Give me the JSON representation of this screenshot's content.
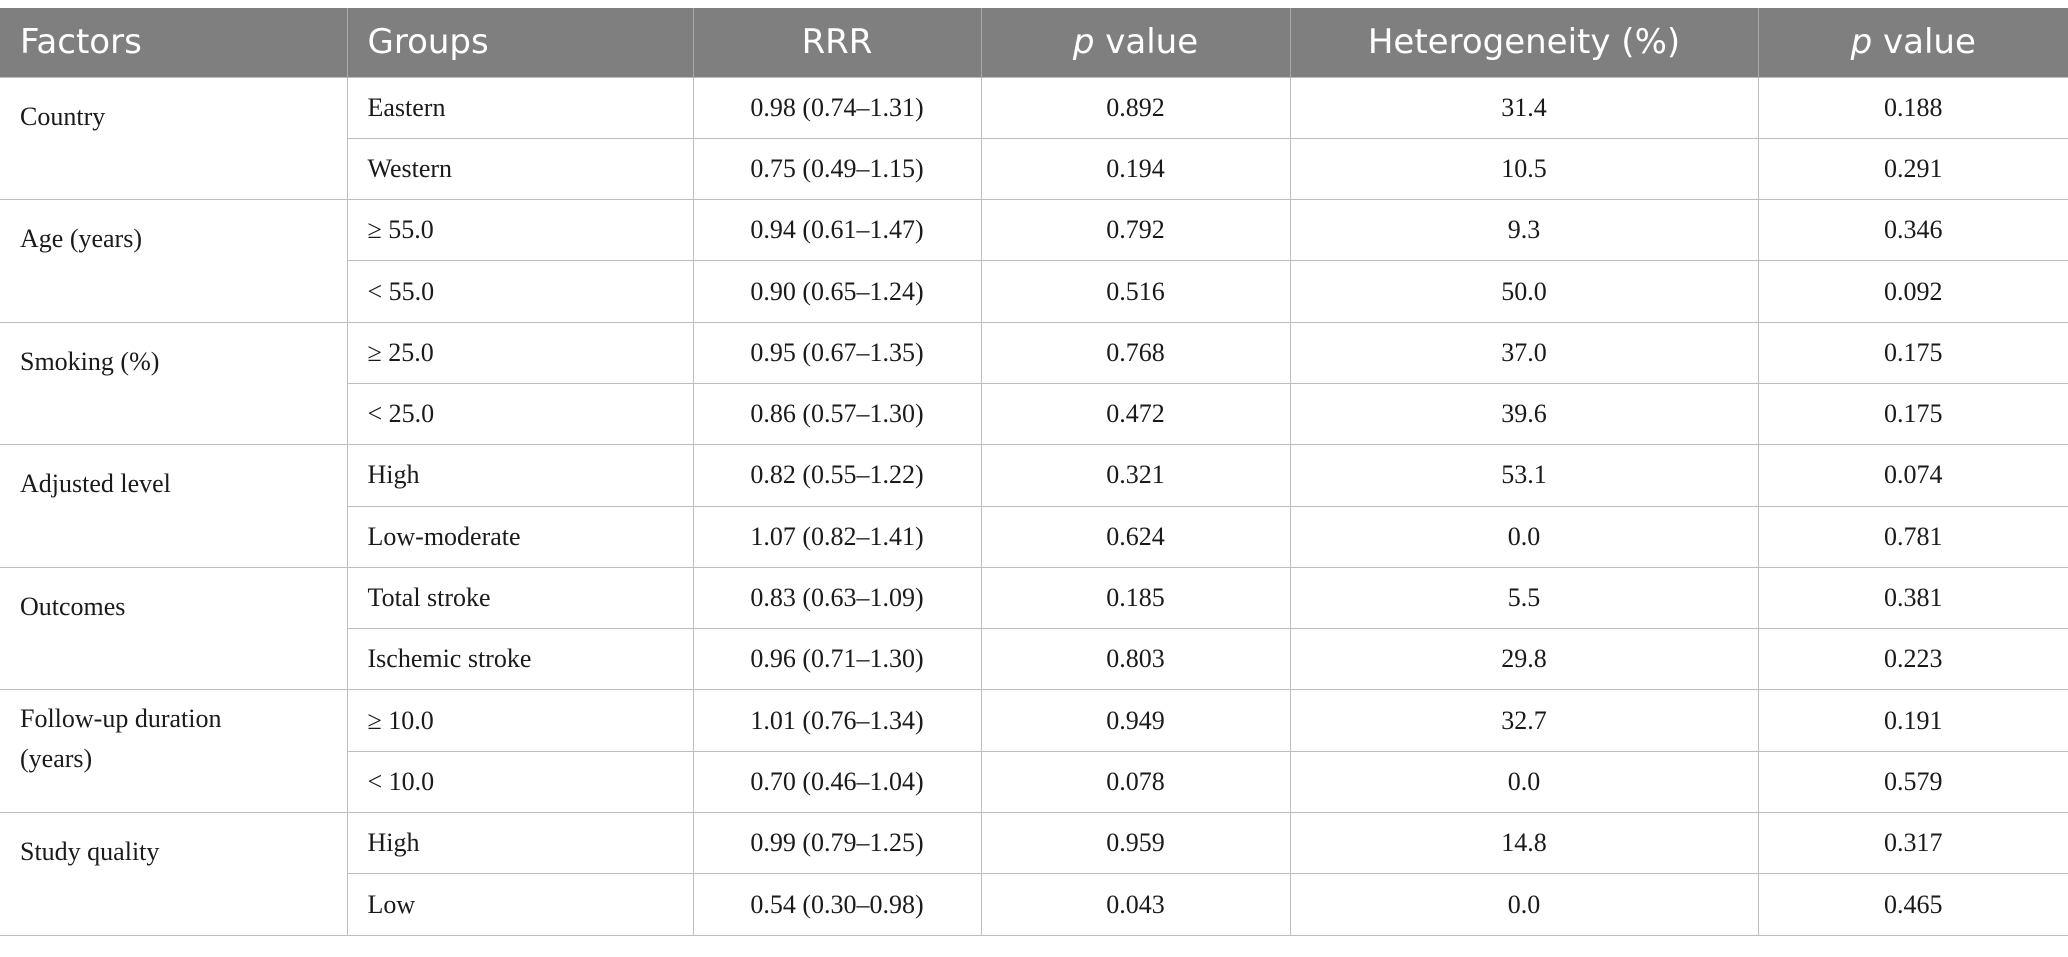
{
  "table": {
    "headers": {
      "factors": "Factors",
      "groups": "Groups",
      "rrr": "RRR",
      "p_value_1_italic": "p",
      "p_value_1_rest": " value",
      "heterogeneity": "Heterogeneity (%)",
      "p_value_2_italic": "p",
      "p_value_2_rest": " value"
    },
    "sections": [
      {
        "factor": "Country",
        "rows": [
          {
            "group": "Eastern",
            "rrr": "0.98 (0.74–1.31)",
            "p": "0.892",
            "het": "31.4",
            "p2": "0.188"
          },
          {
            "group": "Western",
            "rrr": "0.75 (0.49–1.15)",
            "p": "0.194",
            "het": "10.5",
            "p2": "0.291"
          }
        ]
      },
      {
        "factor": "Age (years)",
        "rows": [
          {
            "group": "≥ 55.0",
            "rrr": "0.94 (0.61–1.47)",
            "p": "0.792",
            "het": "9.3",
            "p2": "0.346"
          },
          {
            "group": "< 55.0",
            "rrr": "0.90 (0.65–1.24)",
            "p": "0.516",
            "het": "50.0",
            "p2": "0.092"
          }
        ]
      },
      {
        "factor": "Smoking (%)",
        "rows": [
          {
            "group": "≥ 25.0",
            "rrr": "0.95 (0.67–1.35)",
            "p": "0.768",
            "het": "37.0",
            "p2": "0.175"
          },
          {
            "group": "< 25.0",
            "rrr": "0.86 (0.57–1.30)",
            "p": "0.472",
            "het": "39.6",
            "p2": "0.175"
          }
        ]
      },
      {
        "factor": "Adjusted level",
        "rows": [
          {
            "group": "High",
            "rrr": "0.82 (0.55–1.22)",
            "p": "0.321",
            "het": "53.1",
            "p2": "0.074"
          },
          {
            "group": "Low-moderate",
            "rrr": "1.07 (0.82–1.41)",
            "p": "0.624",
            "het": "0.0",
            "p2": "0.781"
          }
        ]
      },
      {
        "factor": "Outcomes",
        "rows": [
          {
            "group": "Total stroke",
            "rrr": "0.83 (0.63–1.09)",
            "p": "0.185",
            "het": "5.5",
            "p2": "0.381"
          },
          {
            "group": "Ischemic stroke",
            "rrr": "0.96 (0.71–1.30)",
            "p": "0.803",
            "het": "29.8",
            "p2": "0.223"
          }
        ]
      },
      {
        "factor_line1": "Follow-up duration",
        "factor_line2": "(years)",
        "rows": [
          {
            "group": "≥ 10.0",
            "rrr": "1.01 (0.76–1.34)",
            "p": "0.949",
            "het": "32.7",
            "p2": "0.191"
          },
          {
            "group": "< 10.0",
            "rrr": "0.70 (0.46–1.04)",
            "p": "0.078",
            "het": "0.0",
            "p2": "0.579"
          }
        ]
      },
      {
        "factor": "Study quality",
        "rows": [
          {
            "group": "High",
            "rrr": "0.99 (0.79–1.25)",
            "p": "0.959",
            "het": "14.8",
            "p2": "0.317"
          },
          {
            "group": "Low",
            "rrr": "0.54 (0.30–0.98)",
            "p": "0.043",
            "het": "0.0",
            "p2": "0.465"
          }
        ]
      }
    ]
  }
}
